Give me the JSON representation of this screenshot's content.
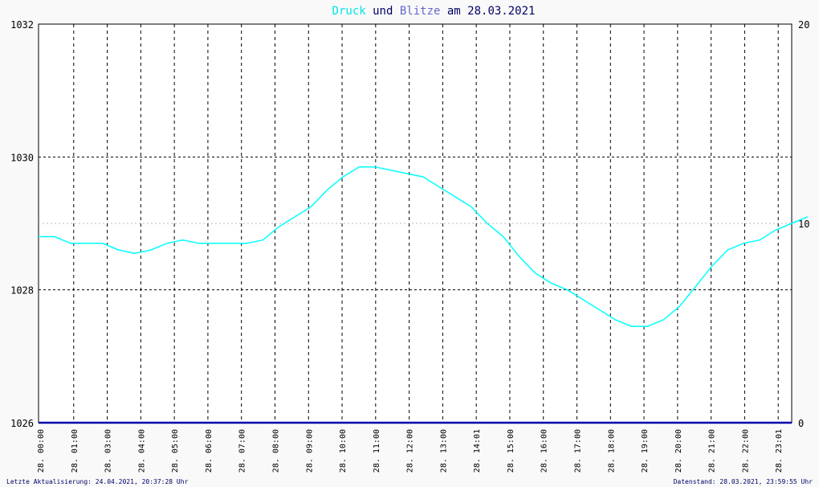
{
  "title": {
    "word1": "Druck",
    "word2": " und ",
    "word3": "Blitze",
    "word4": " am 28.03.2021"
  },
  "footer": {
    "left": "Letzte Aktualisierung: 24.04.2021, 20:37:28 Uhr",
    "right": "Datenstand: 28.03.2021, 23:59:55 Uhr"
  },
  "colors": {
    "druck": "#00ffff",
    "blitze": "#0000aa",
    "title_text": "#000066"
  },
  "chart_data": {
    "type": "line",
    "title": "Druck und Blitze am 28.03.2021",
    "xlabel": "",
    "ylabel": "",
    "ylim": [
      1026,
      1032
    ],
    "y2lim": [
      0,
      20
    ],
    "yticks": [
      "1026",
      "1028",
      "1030",
      "1032"
    ],
    "y2ticks": [
      "0",
      "10",
      "20"
    ],
    "grid": true,
    "x_tick_labels": [
      "28. 00:00",
      "28. 01:00",
      "28. 03:00",
      "28. 04:00",
      "28. 05:00",
      "28. 06:00",
      "28. 07:00",
      "28. 08:00",
      "28. 09:00",
      "28. 10:00",
      "28. 11:00",
      "28. 12:00",
      "28. 13:00",
      "28. 14:01",
      "28. 15:00",
      "28. 16:00",
      "28. 17:00",
      "28. 18:00",
      "28. 19:00",
      "28. 20:00",
      "28. 21:00",
      "28. 22:00",
      "28. 23:01"
    ],
    "series": [
      {
        "name": "Druck",
        "axis": "left",
        "x_hours": [
          0.0,
          0.5,
          1.0,
          1.5,
          2.0,
          2.5,
          3.0,
          3.5,
          4.0,
          4.5,
          5.0,
          5.5,
          6.0,
          6.5,
          7.0,
          7.5,
          8.0,
          8.5,
          9.0,
          9.5,
          10.0,
          10.5,
          11.0,
          11.5,
          12.0,
          12.5,
          13.0,
          13.5,
          14.0,
          14.5,
          15.0,
          15.5,
          16.0,
          16.5,
          17.0,
          17.5,
          18.0,
          18.5,
          19.0,
          19.5,
          20.0,
          20.5,
          21.0,
          21.5,
          22.0,
          22.5,
          23.0,
          23.5,
          24.0
        ],
        "values": [
          1028.8,
          1028.8,
          1028.7,
          1028.7,
          1028.7,
          1028.6,
          1028.55,
          1028.6,
          1028.7,
          1028.75,
          1028.7,
          1028.7,
          1028.7,
          1028.7,
          1028.75,
          1028.95,
          1029.1,
          1029.25,
          1029.5,
          1029.7,
          1029.85,
          1029.85,
          1029.8,
          1029.75,
          1029.7,
          1029.55,
          1029.4,
          1029.25,
          1029.0,
          1028.8,
          1028.5,
          1028.25,
          1028.1,
          1028.0,
          1027.85,
          1027.7,
          1027.55,
          1027.45,
          1027.45,
          1027.55,
          1027.75,
          1028.05,
          1028.35,
          1028.6,
          1028.7,
          1028.75,
          1028.9,
          1029.0,
          1029.1
        ]
      },
      {
        "name": "Blitze",
        "axis": "right",
        "x_hours": [
          0,
          24
        ],
        "values": [
          0,
          0
        ]
      }
    ]
  }
}
